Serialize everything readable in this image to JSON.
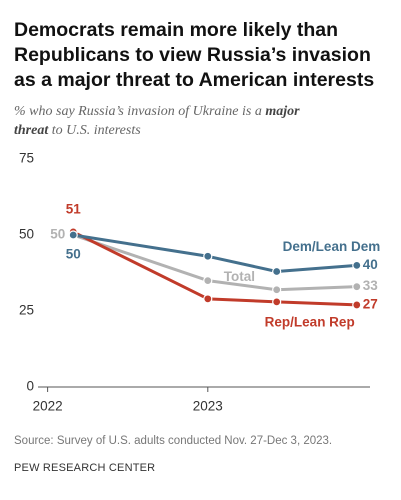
{
  "chart_data": {
    "type": "line",
    "title": [
      "Democrats remain more likely than",
      "Republicans to view Russia’s invasion",
      "as a major threat to American interests"
    ],
    "subtitle": [
      [
        "% who say Russia’s invasion of Ukraine is a ",
        "major"
      ],
      [
        "threat",
        " to U.S. interests"
      ]
    ],
    "x": [
      2022.16,
      2023.0,
      2023.43,
      2023.93
    ],
    "xlim": [
      2021.94,
      2024.05
    ],
    "xticks": [
      2022,
      2023
    ],
    "ylim": [
      0,
      75
    ],
    "yticks": [
      0,
      25,
      50,
      75
    ],
    "series": [
      {
        "name": "Total",
        "color": "#b2b2b2",
        "values": [
          50,
          35,
          32,
          33
        ]
      },
      {
        "name": "Rep/Lean Rep",
        "color": "#c13b2a",
        "values": [
          51,
          29,
          28,
          27
        ]
      },
      {
        "name": "Dem/Lean Dem",
        "color": "#44708d",
        "values": [
          50,
          43,
          38,
          40
        ]
      }
    ],
    "source": "Source: Survey of U.S. adults conducted Nov. 27-Dec 3, 2023.",
    "organization": "PEW RESEARCH CENTER"
  }
}
